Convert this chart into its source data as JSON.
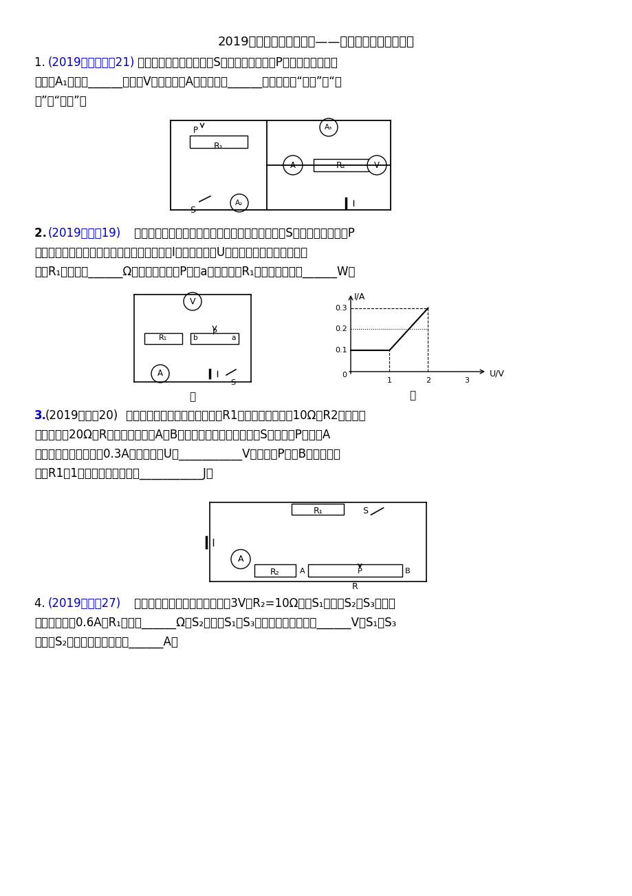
{
  "title": "2019年中考物理真题集锦——专题五十四：动态电路",
  "bg_color": "#ffffff",
  "text_color": "#000000",
  "blue_color": "#0000cc",
  "q1_prefix": "1. ",
  "q1_blue": "(2019齐齐哈尔，21)",
  "q1_text": " 如图所示电路，闭合开关S，滑动变阻器滑片P向右滑动过程中，",
  "q1_line2": "电流表A₁的示数______。电压V表与电流表A示数的比値______。（均选填“变大”、“变",
  "q1_line3": "小”或“不变”）",
  "q2_prefix": "2. ",
  "q2_blue": "(2019天津，19)",
  "q2_text": " 如图甲所示的电路，电源电压保持不变，闭合开关S，滑动变阻器滑片P",
  "q2_line2": "今ａ端移动到ｂ端的整个过程中，电流表示数I与电压表示数U的关系图象如图乙所示。则",
  "q2_line3": "电阵R₁的阻値为______Ω；当变阻器滑片P处于a端时，电阵R₁消耗的电功率为______W。",
  "q3_prefix": "3.",
  "q3_blue": "(2019益阳，20)",
  "q3_text": " 如图所示电路，电源电压不变，R1为发热电阵，阻倶10Ω。R2为定値电",
  "q3_line2": "阻，阻値为20Ω。R为滑动变阻器（A、B为其两个端点）。闭合开关S，当滑片P移动到A",
  "q3_line3": "端时，电流表的示数为0.3A，电源电压U＝___________V。当滑片P移到B点时，发热",
  "q3_line4": "电阵R1在1分钟内产生的热量为___________J。",
  "q4_prefix": "4. ",
  "q4_blue": "(2019阜新，27)",
  "q4_text": " 如图所示电路，电源电压恒定为3V，R₂=10Ω，当S₁闭合，S₂、S₃断开，",
  "q4_line2": "电流表示数为0.6A，R₁阻値为______Ω；S₂闭合，S₁、S₃断开，电压表示数为______V；S₁、S₃",
  "q4_line3": "闭合，S₂断开，电流表示数为______A。"
}
